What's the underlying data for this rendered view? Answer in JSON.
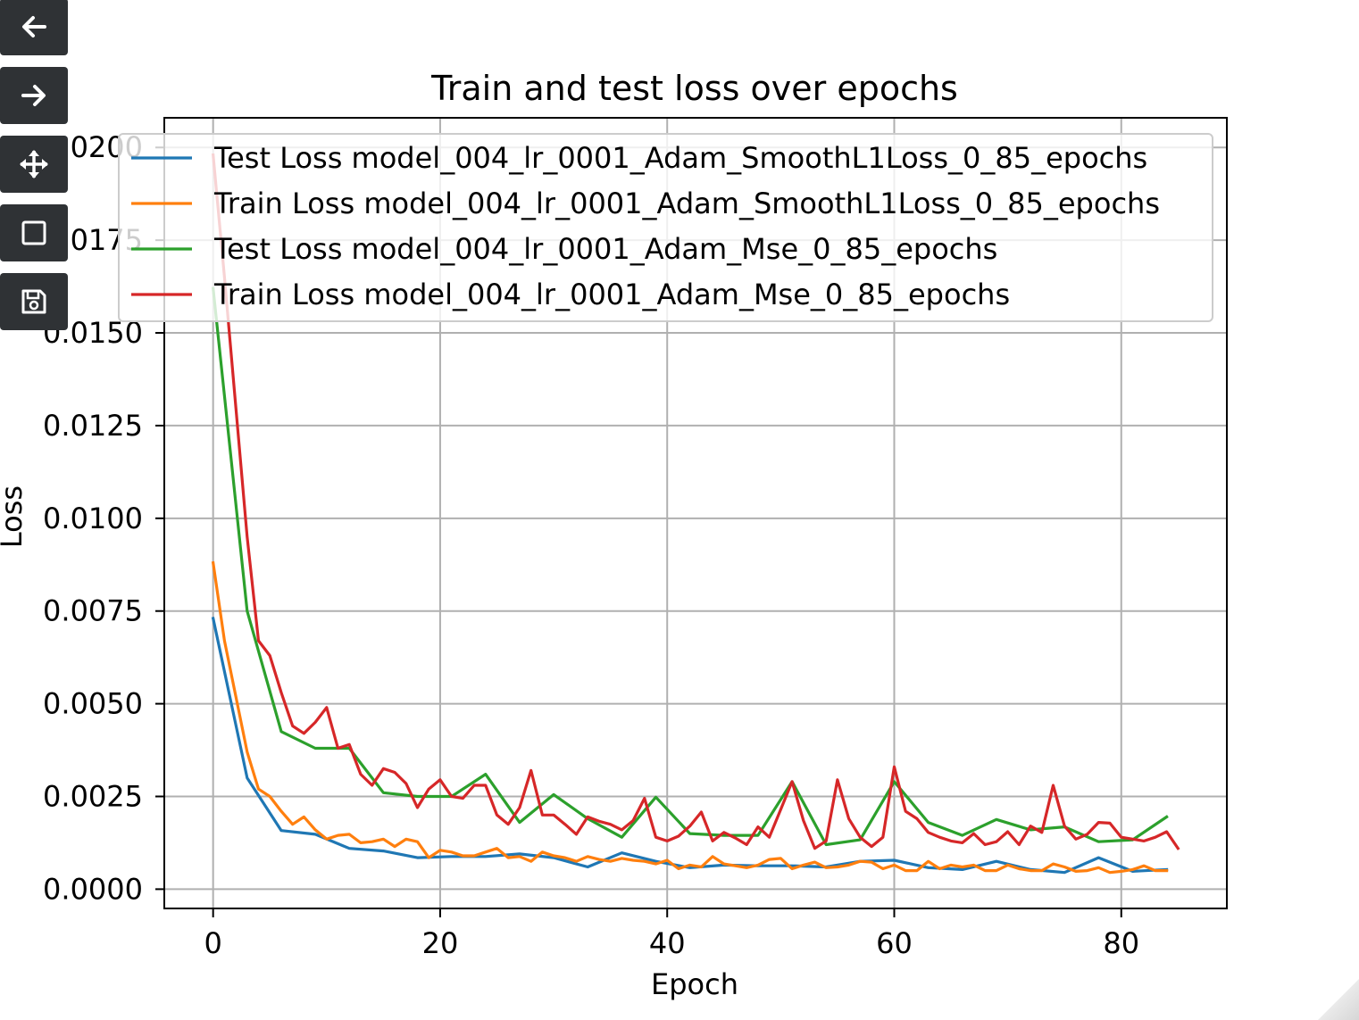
{
  "toolbar": {
    "buttons": [
      {
        "icon": "back-arrow-icon",
        "action": "back"
      },
      {
        "icon": "forward-arrow-icon",
        "action": "forward"
      },
      {
        "icon": "pan-move-icon",
        "action": "pan"
      },
      {
        "icon": "zoom-rect-icon",
        "action": "zoom"
      },
      {
        "icon": "save-disk-icon",
        "action": "save"
      }
    ],
    "color": "#2f3235"
  },
  "chart_data": {
    "type": "line",
    "title": "Train and test loss over epochs",
    "xlabel": "Epoch",
    "ylabel": "Loss",
    "xlim": [
      -4.3,
      89.3
    ],
    "ylim": [
      -0.00052,
      0.0208
    ],
    "xticks": [
      0,
      20,
      40,
      60,
      80
    ],
    "xtick_labels": [
      "0",
      "20",
      "40",
      "60",
      "80"
    ],
    "yticks": [
      0,
      0.0025,
      0.005,
      0.0075,
      0.01,
      0.0125,
      0.015,
      0.0175,
      0.02
    ],
    "ytick_labels": [
      "0.0000",
      "0.0025",
      "0.0050",
      "0.0075",
      "0.0100",
      "0.0125",
      "0.0150",
      "0.0175",
      "0.0200"
    ],
    "grid": true,
    "legend_position": "top",
    "series": [
      {
        "name": "Test Loss model_004_lr_0001_Adam_SmoothL1Loss_0_85_epochs",
        "color": "#1f77b4",
        "x": [
          0,
          3,
          6,
          9,
          12,
          15,
          18,
          21,
          24,
          27,
          30,
          33,
          36,
          39,
          42,
          45,
          48,
          51,
          54,
          57,
          60,
          63,
          66,
          69,
          72,
          75,
          78,
          81,
          84
        ],
        "y": [
          0.0073,
          0.003,
          0.00158,
          0.00148,
          0.0011,
          0.00103,
          0.00085,
          0.00088,
          0.00088,
          0.00095,
          0.00085,
          0.0006,
          0.00098,
          0.00075,
          0.00058,
          0.00065,
          0.00063,
          0.00063,
          0.0006,
          0.00075,
          0.00078,
          0.00058,
          0.00053,
          0.00075,
          0.00053,
          0.00045,
          0.00085,
          0.00048,
          0.00053
        ]
      },
      {
        "name": "Train Loss model_004_lr_0001_Adam_SmoothL1Loss_0_85_epochs",
        "color": "#ff7f0e",
        "x": [
          0,
          1,
          2,
          3,
          4,
          5,
          6,
          7,
          8,
          9,
          10,
          11,
          12,
          13,
          14,
          15,
          16,
          17,
          18,
          19,
          20,
          21,
          22,
          23,
          24,
          25,
          26,
          27,
          28,
          29,
          30,
          31,
          32,
          33,
          34,
          35,
          36,
          37,
          38,
          39,
          40,
          41,
          42,
          43,
          44,
          45,
          46,
          47,
          48,
          49,
          50,
          51,
          52,
          53,
          54,
          55,
          56,
          57,
          58,
          59,
          60,
          61,
          62,
          63,
          64,
          65,
          66,
          67,
          68,
          69,
          70,
          71,
          72,
          73,
          74,
          75,
          76,
          77,
          78,
          79,
          80,
          81,
          82,
          83,
          84
        ],
        "y": [
          0.0088,
          0.0067,
          0.0052,
          0.0037,
          0.0027,
          0.0025,
          0.0021,
          0.00175,
          0.00195,
          0.0016,
          0.00135,
          0.00145,
          0.00148,
          0.00125,
          0.00128,
          0.00135,
          0.00115,
          0.00135,
          0.00128,
          0.00085,
          0.00105,
          0.001,
          0.0009,
          0.0009,
          0.001,
          0.0011,
          0.00085,
          0.00088,
          0.00075,
          0.001,
          0.0009,
          0.00085,
          0.00075,
          0.00088,
          0.0008,
          0.00075,
          0.00083,
          0.00078,
          0.00075,
          0.00068,
          0.00078,
          0.00055,
          0.00065,
          0.0006,
          0.00088,
          0.00068,
          0.00063,
          0.00058,
          0.00065,
          0.0008,
          0.00083,
          0.00055,
          0.00065,
          0.00073,
          0.00058,
          0.0006,
          0.00065,
          0.00075,
          0.00073,
          0.00055,
          0.00065,
          0.0005,
          0.0005,
          0.00075,
          0.00055,
          0.00065,
          0.0006,
          0.00065,
          0.0005,
          0.0005,
          0.00065,
          0.00055,
          0.0005,
          0.0005,
          0.00068,
          0.0006,
          0.00048,
          0.0005,
          0.00058,
          0.00045,
          0.00048,
          0.00053,
          0.00063,
          0.0005,
          0.0005
        ]
      },
      {
        "name": "Test Loss model_004_lr_0001_Adam_Mse_0_85_epochs",
        "color": "#2ca02c",
        "x": [
          0,
          3,
          6,
          9,
          12,
          15,
          18,
          21,
          24,
          27,
          30,
          33,
          36,
          39,
          42,
          45,
          48,
          51,
          54,
          57,
          60,
          63,
          66,
          69,
          72,
          75,
          78,
          81,
          84
        ],
        "y": [
          0.0162,
          0.0075,
          0.00425,
          0.0038,
          0.0038,
          0.0026,
          0.0025,
          0.0025,
          0.0031,
          0.0018,
          0.00255,
          0.0019,
          0.0014,
          0.00248,
          0.0015,
          0.00145,
          0.00145,
          0.0029,
          0.0012,
          0.00133,
          0.0029,
          0.0018,
          0.00145,
          0.00188,
          0.0016,
          0.00168,
          0.00128,
          0.00133,
          0.00195
        ]
      },
      {
        "name": "Train Loss model_004_lr_0001_Adam_Mse_0_85_epochs",
        "color": "#d62728",
        "x": [
          0,
          1,
          2,
          3,
          4,
          5,
          6,
          7,
          8,
          9,
          10,
          11,
          12,
          13,
          14,
          15,
          16,
          17,
          18,
          19,
          20,
          21,
          22,
          23,
          24,
          25,
          26,
          27,
          28,
          29,
          30,
          31,
          32,
          33,
          34,
          35,
          36,
          37,
          38,
          39,
          40,
          41,
          42,
          43,
          44,
          45,
          46,
          47,
          48,
          49,
          50,
          51,
          52,
          53,
          54,
          55,
          56,
          57,
          58,
          59,
          60,
          61,
          62,
          63,
          64,
          65,
          66,
          67,
          68,
          69,
          70,
          71,
          72,
          73,
          74,
          75,
          76,
          77,
          78,
          79,
          80,
          81,
          82,
          83,
          84,
          85
        ],
        "y": [
          0.0198,
          0.0165,
          0.013,
          0.0095,
          0.0067,
          0.0063,
          0.0053,
          0.0044,
          0.0042,
          0.0045,
          0.0049,
          0.0038,
          0.0039,
          0.0031,
          0.0028,
          0.00325,
          0.00315,
          0.00285,
          0.0022,
          0.0027,
          0.00295,
          0.0025,
          0.00245,
          0.0028,
          0.0028,
          0.002,
          0.00175,
          0.0022,
          0.0032,
          0.002,
          0.002,
          0.00175,
          0.00148,
          0.00195,
          0.00183,
          0.00175,
          0.0016,
          0.00185,
          0.00245,
          0.0014,
          0.0013,
          0.00143,
          0.0017,
          0.00208,
          0.0013,
          0.00153,
          0.00138,
          0.0012,
          0.00168,
          0.0014,
          0.00215,
          0.0029,
          0.00185,
          0.0011,
          0.0013,
          0.00295,
          0.0019,
          0.0014,
          0.00115,
          0.0014,
          0.0033,
          0.0021,
          0.0019,
          0.00153,
          0.0014,
          0.0013,
          0.00125,
          0.0015,
          0.0012,
          0.00128,
          0.00155,
          0.0012,
          0.0017,
          0.00153,
          0.0028,
          0.0017,
          0.00135,
          0.00148,
          0.0018,
          0.00178,
          0.0014,
          0.00135,
          0.0013,
          0.0014,
          0.00155,
          0.0011
        ]
      }
    ]
  }
}
